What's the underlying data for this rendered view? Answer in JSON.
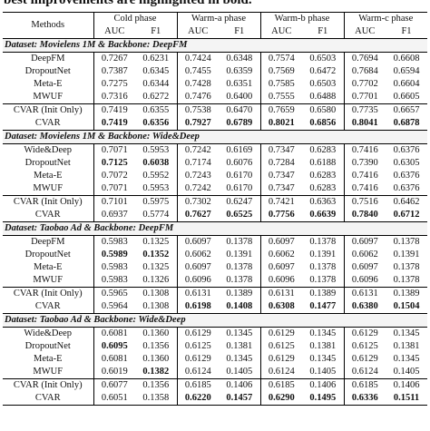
{
  "caption": "best improvements are highlighted in bold.",
  "header": {
    "methods": "Methods",
    "phases": [
      "Cold phase",
      "Warm-a phase",
      "Warm-b phase",
      "Warm-c phase"
    ],
    "metrics": [
      "AUC",
      "F1"
    ]
  },
  "sections": [
    {
      "title": "Dataset: Movielens 1M & Backbone: DeepFM",
      "rows": [
        {
          "method": "DeepFM",
          "values": [
            "0.7267",
            "0.6231",
            "0.7424",
            "0.6348",
            "0.7574",
            "0.6503",
            "0.7694",
            "0.6608"
          ],
          "bold": []
        },
        {
          "method": "DropoutNet",
          "values": [
            "0.7387",
            "0.6345",
            "0.7455",
            "0.6359",
            "0.7569",
            "0.6472",
            "0.7684",
            "0.6594"
          ],
          "bold": []
        },
        {
          "method": "Meta-E",
          "values": [
            "0.7275",
            "0.6344",
            "0.7428",
            "0.6351",
            "0.7585",
            "0.6503",
            "0.7702",
            "0.6604"
          ],
          "bold": []
        },
        {
          "method": "MWUF",
          "values": [
            "0.7316",
            "0.6272",
            "0.7476",
            "0.6400",
            "0.7555",
            "0.6488",
            "0.7701",
            "0.6605"
          ],
          "bold": []
        },
        {
          "method": "CVAR (Init Only)",
          "values": [
            "0.7419",
            "0.6355",
            "0.7538",
            "0.6470",
            "0.7659",
            "0.6580",
            "0.7735",
            "0.6657"
          ],
          "bold": []
        },
        {
          "method": "CVAR",
          "values": [
            "0.7419",
            "0.6356",
            "0.7927",
            "0.6789",
            "0.8021",
            "0.6856",
            "0.8041",
            "0.6878"
          ],
          "bold": [
            0,
            1,
            2,
            3,
            4,
            5,
            6,
            7
          ]
        }
      ]
    },
    {
      "title": "Dataset: Movielens 1M & Backbone: Wide&Deep",
      "rows": [
        {
          "method": "Wide&Deep",
          "values": [
            "0.7071",
            "0.5953",
            "0.7242",
            "0.6169",
            "0.7347",
            "0.6283",
            "0.7416",
            "0.6376"
          ],
          "bold": []
        },
        {
          "method": "DropoutNet",
          "values": [
            "0.7125",
            "0.6038",
            "0.7174",
            "0.6076",
            "0.7284",
            "0.6188",
            "0.7390",
            "0.6305"
          ],
          "bold": [
            0,
            1
          ]
        },
        {
          "method": "Meta-E",
          "values": [
            "0.7072",
            "0.5952",
            "0.7243",
            "0.6170",
            "0.7347",
            "0.6283",
            "0.7416",
            "0.6376"
          ],
          "bold": []
        },
        {
          "method": "MWUF",
          "values": [
            "0.7071",
            "0.5953",
            "0.7242",
            "0.6170",
            "0.7347",
            "0.6283",
            "0.7416",
            "0.6376"
          ],
          "bold": []
        },
        {
          "method": "CVAR (Init Only)",
          "values": [
            "0.7101",
            "0.5975",
            "0.7302",
            "0.6247",
            "0.7421",
            "0.6363",
            "0.7516",
            "0.6462"
          ],
          "bold": []
        },
        {
          "method": "CVAR",
          "values": [
            "0.6937",
            "0.5774",
            "0.7627",
            "0.6525",
            "0.7756",
            "0.6639",
            "0.7840",
            "0.6712"
          ],
          "bold": [
            2,
            3,
            4,
            5,
            6,
            7
          ]
        }
      ]
    },
    {
      "title": "Dataset: Taobao Ad & Backbone: DeepFM",
      "rows": [
        {
          "method": "DeepFM",
          "values": [
            "0.5983",
            "0.1325",
            "0.6097",
            "0.1378",
            "0.6097",
            "0.1378",
            "0.6097",
            "0.1378"
          ],
          "bold": []
        },
        {
          "method": "DropoutNet",
          "values": [
            "0.5989",
            "0.1352",
            "0.6062",
            "0.1391",
            "0.6062",
            "0.1391",
            "0.6062",
            "0.1391"
          ],
          "bold": [
            0,
            1
          ]
        },
        {
          "method": "Meta-E",
          "values": [
            "0.5983",
            "0.1325",
            "0.6097",
            "0.1378",
            "0.6097",
            "0.1378",
            "0.6097",
            "0.1378"
          ],
          "bold": []
        },
        {
          "method": "MWUF",
          "values": [
            "0.5983",
            "0.1326",
            "0.6096",
            "0.1378",
            "0.6096",
            "0.1378",
            "0.6096",
            "0.1378"
          ],
          "bold": []
        },
        {
          "method": "CVAR (Init Only)",
          "values": [
            "0.5965",
            "0.1308",
            "0.6131",
            "0.1389",
            "0.6131",
            "0.1389",
            "0.6131",
            "0.1389"
          ],
          "bold": []
        },
        {
          "method": "CVAR",
          "values": [
            "0.5964",
            "0.1308",
            "0.6198",
            "0.1408",
            "0.6308",
            "0.1477",
            "0.6380",
            "0.1504"
          ],
          "bold": [
            2,
            3,
            4,
            5,
            6,
            7
          ]
        }
      ]
    },
    {
      "title": "Dataset: Taobao Ad & Backbone: Wide&Deep",
      "rows": [
        {
          "method": "Wide&Deep",
          "values": [
            "0.6081",
            "0.1360",
            "0.6129",
            "0.1345",
            "0.6129",
            "0.1345",
            "0.6129",
            "0.1345"
          ],
          "bold": []
        },
        {
          "method": "DropoutNet",
          "values": [
            "0.6095",
            "0.1356",
            "0.6125",
            "0.1381",
            "0.6125",
            "0.1381",
            "0.6125",
            "0.1381"
          ],
          "bold": [
            0
          ]
        },
        {
          "method": "Meta-E",
          "values": [
            "0.6081",
            "0.1360",
            "0.6129",
            "0.1345",
            "0.6129",
            "0.1345",
            "0.6129",
            "0.1345"
          ],
          "bold": []
        },
        {
          "method": "MWUF",
          "values": [
            "0.6019",
            "0.1382",
            "0.6124",
            "0.1405",
            "0.6124",
            "0.1405",
            "0.6124",
            "0.1405"
          ],
          "bold": [
            1
          ]
        },
        {
          "method": "CVAR (Init Only)",
          "values": [
            "0.6077",
            "0.1356",
            "0.6185",
            "0.1406",
            "0.6185",
            "0.1406",
            "0.6185",
            "0.1406"
          ],
          "bold": []
        },
        {
          "method": "CVAR",
          "values": [
            "0.6051",
            "0.1358",
            "0.6220",
            "0.1457",
            "0.6290",
            "0.1495",
            "0.6336",
            "0.1511"
          ],
          "bold": [
            2,
            3,
            4,
            5,
            6,
            7
          ]
        }
      ]
    }
  ]
}
